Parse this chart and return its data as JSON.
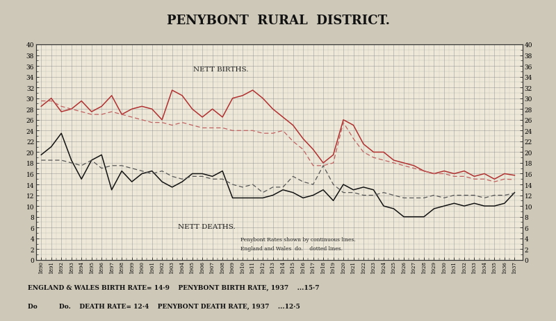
{
  "title": "PENYBONT  RURAL  DISTRICT.",
  "years": [
    1890,
    1891,
    1892,
    1893,
    1894,
    1895,
    1896,
    1897,
    1898,
    1899,
    1900,
    1901,
    1902,
    1903,
    1904,
    1905,
    1906,
    1907,
    1908,
    1909,
    1910,
    1911,
    1912,
    1913,
    1914,
    1915,
    1916,
    1917,
    1918,
    1919,
    1920,
    1921,
    1922,
    1923,
    1924,
    1925,
    1926,
    1927,
    1928,
    1929,
    1930,
    1931,
    1932,
    1933,
    1934,
    1935,
    1936,
    1937
  ],
  "penybont_birth": [
    28.5,
    30.0,
    27.5,
    28.0,
    29.5,
    27.5,
    28.5,
    30.5,
    27.0,
    28.0,
    28.5,
    28.0,
    26.0,
    31.5,
    30.5,
    28.0,
    26.5,
    28.0,
    26.5,
    30.0,
    30.5,
    31.5,
    30.0,
    28.0,
    26.5,
    25.0,
    22.5,
    20.5,
    18.0,
    19.5,
    26.0,
    25.0,
    21.5,
    20.0,
    20.0,
    18.5,
    18.0,
    17.5,
    16.5,
    16.0,
    16.5,
    16.0,
    16.5,
    15.5,
    16.0,
    15.0,
    16.0,
    15.7
  ],
  "ew_birth": [
    29.5,
    29.5,
    28.5,
    28.0,
    27.5,
    27.0,
    27.0,
    27.5,
    27.0,
    26.5,
    26.0,
    25.5,
    25.5,
    25.0,
    25.5,
    25.0,
    24.5,
    24.5,
    24.5,
    24.0,
    24.0,
    24.0,
    23.5,
    23.5,
    24.0,
    22.0,
    20.5,
    17.5,
    17.5,
    18.0,
    25.5,
    22.5,
    20.0,
    19.0,
    18.5,
    18.0,
    17.5,
    17.0,
    16.5,
    16.0,
    16.0,
    15.5,
    15.5,
    15.0,
    15.0,
    14.5,
    15.0,
    14.9
  ],
  "penybont_death": [
    19.5,
    21.0,
    23.5,
    18.5,
    15.0,
    18.5,
    19.5,
    13.0,
    16.5,
    14.5,
    16.0,
    16.5,
    14.5,
    13.5,
    14.5,
    16.0,
    16.0,
    15.5,
    16.5,
    11.5,
    11.5,
    11.5,
    11.5,
    12.0,
    13.0,
    12.5,
    11.5,
    12.0,
    13.0,
    11.0,
    14.0,
    13.0,
    13.5,
    13.0,
    10.0,
    9.5,
    8.0,
    8.0,
    8.0,
    9.5,
    10.0,
    10.5,
    10.0,
    10.5,
    10.0,
    10.0,
    10.5,
    12.5
  ],
  "ew_death": [
    18.5,
    18.5,
    18.5,
    18.0,
    17.5,
    18.5,
    17.0,
    17.5,
    17.5,
    17.0,
    16.5,
    16.0,
    16.5,
    15.5,
    15.0,
    15.5,
    15.5,
    15.0,
    15.0,
    14.0,
    13.5,
    14.0,
    12.5,
    13.5,
    13.5,
    15.5,
    14.5,
    14.0,
    17.5,
    14.0,
    12.5,
    12.5,
    12.0,
    12.0,
    12.5,
    12.0,
    11.5,
    11.5,
    11.5,
    12.0,
    11.5,
    12.0,
    12.0,
    12.0,
    11.5,
    12.0,
    12.0,
    12.4
  ],
  "bg_color": "#cec8b8",
  "plot_bg": "#ede8d8",
  "grid_color": "#888888",
  "birth_color_solid": "#b03030",
  "birth_color_dash": "#c06060",
  "death_color_solid": "#111111",
  "death_color_dash": "#555555",
  "ylim": [
    0,
    40
  ],
  "ytick_interval": 2,
  "legend_text1": "Penybont Rates shown by continuous lines.",
  "legend_text2": "England and Wales  do.    dotted lines.",
  "footer1": "ENGLAND & WALES BIRTH RATE= 14·9    PENYBONT BIRTH RATE, 1937    ...15·7",
  "footer2": "Do          Do.    DEATH RATE= 12·4    PENYBONT DEATH RATE, 1937    ...12·5",
  "nett_births_label": "NETT BIRTHS.",
  "nett_deaths_label": "NETT DEATHS."
}
